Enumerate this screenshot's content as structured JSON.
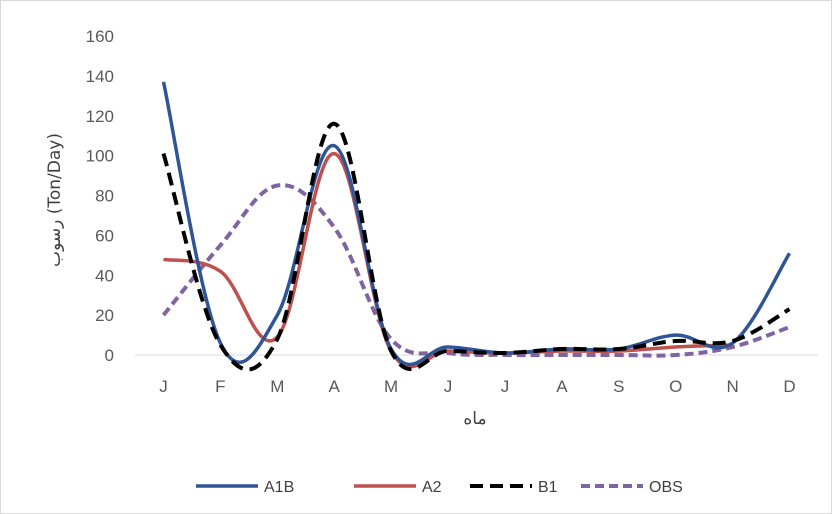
{
  "chart_data": {
    "type": "line",
    "title": "",
    "xlabel": "ماه",
    "ylabel": "رسوب (Ton/Day)",
    "categories": [
      "J",
      "F",
      "M",
      "A",
      "M",
      "J",
      "J",
      "A",
      "S",
      "O",
      "N",
      "D"
    ],
    "ylim": [
      0,
      160
    ],
    "yticks": [
      "0",
      "20",
      "40",
      "60",
      "80",
      "100",
      "120",
      "140",
      "160"
    ],
    "grid": false,
    "legend_position": "bottom",
    "series": [
      {
        "name": "A1B",
        "color": "#2f5597",
        "dash": "solid",
        "values": [
          137,
          6,
          20,
          105,
          3,
          4,
          1,
          3,
          3,
          10,
          6,
          51
        ]
      },
      {
        "name": "A2",
        "color": "#c0504d",
        "dash": "solid",
        "values": [
          48,
          42,
          9,
          101,
          2,
          2,
          1,
          2,
          2,
          4,
          5,
          null
        ]
      },
      {
        "name": "B1",
        "color": "#000000",
        "dash": "dashed",
        "values": [
          101,
          5,
          8,
          116,
          2,
          2,
          1,
          3,
          3,
          7,
          7,
          23
        ]
      },
      {
        "name": "OBS",
        "color": "#8064a2",
        "dash": "dashed",
        "values": [
          20,
          55,
          85,
          64,
          8,
          1,
          0,
          0,
          0,
          0,
          4,
          14
        ]
      }
    ]
  }
}
